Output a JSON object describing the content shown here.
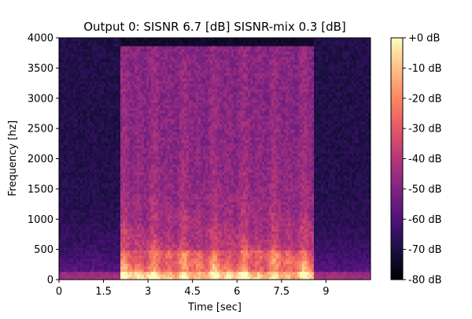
{
  "chart_data": {
    "type": "heatmap",
    "title": "Output 0: SISNR 6.7 [dB] SISNR-mix 0.3 [dB]",
    "xlabel": "Time [sec]",
    "ylabel": "Frequency [hz]",
    "xlim": [
      0,
      10.5
    ],
    "ylim": [
      0,
      4000
    ],
    "x_ticks": [
      0,
      1.5,
      3,
      4.5,
      6,
      7.5,
      9
    ],
    "x_tick_labels": [
      "0",
      "1.5",
      "3",
      "4.5",
      "6",
      "7.5",
      "9"
    ],
    "y_ticks": [
      0,
      500,
      1000,
      1500,
      2000,
      2500,
      3000,
      3500,
      4000
    ],
    "y_tick_labels": [
      "0",
      "500",
      "1000",
      "1500",
      "2000",
      "2500",
      "3000",
      "3500",
      "4000"
    ],
    "colorbar": {
      "colormap": "magma",
      "range_db": [
        -80,
        0
      ],
      "ticks": [
        0,
        -10,
        -20,
        -30,
        -40,
        -50,
        -60,
        -70,
        -80
      ],
      "tick_labels": [
        "+0 dB",
        "-10 dB",
        "-20 dB",
        "-30 dB",
        "-40 dB",
        "-50 dB",
        "-60 dB",
        "-70 dB",
        "-80 dB"
      ]
    },
    "speech_activity_sec": [
      2.1,
      8.6
    ],
    "band_limit_hz": 3850,
    "colors": {
      "low": "#000004",
      "mid_low": "#3b0f70",
      "mid": "#8c2981",
      "mid_high": "#de4968",
      "high": "#fe9f6d",
      "top": "#fcfdbf"
    }
  }
}
